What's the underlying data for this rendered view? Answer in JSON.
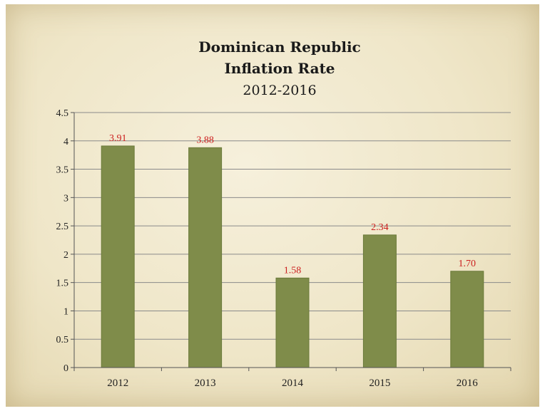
{
  "colors": {
    "bar": "#7f8c4a",
    "bar_edge": "#6b7a3a",
    "data_label": "#cc1f1f",
    "grid": "#8a8a8a",
    "axis": "#555555"
  },
  "chart_data": {
    "type": "bar",
    "title_lines": [
      "Dominican Republic",
      "Inflation Rate",
      "2012-2016"
    ],
    "categories": [
      "2012",
      "2013",
      "2014",
      "2015",
      "2016"
    ],
    "values": [
      3.91,
      3.88,
      1.58,
      2.34,
      1.7
    ],
    "data_labels": [
      "3.91",
      "3.88",
      "1.58",
      "2.34",
      "1.70"
    ],
    "y_ticks": [
      "0",
      "0.5",
      "1",
      "1.5",
      "2",
      "2.5",
      "3",
      "3.5",
      "4",
      "4.5"
    ],
    "ylim": [
      0,
      4.5
    ],
    "grid": true,
    "legend": "none",
    "xlabel": "",
    "ylabel": ""
  }
}
